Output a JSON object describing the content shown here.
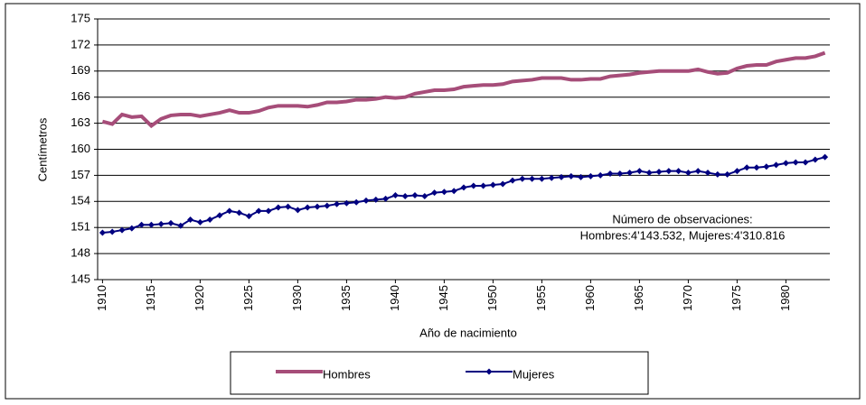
{
  "chart_data": {
    "type": "line",
    "ylabel": "Centímetros",
    "xlabel": "Año de nacimiento",
    "annotations": [
      "Número de observaciones:",
      "Hombres:4'143.532, Mujeres:4'310.816"
    ],
    "x": [
      1910,
      1911,
      1912,
      1913,
      1914,
      1915,
      1916,
      1917,
      1918,
      1919,
      1920,
      1921,
      1922,
      1923,
      1924,
      1925,
      1926,
      1927,
      1928,
      1929,
      1930,
      1931,
      1932,
      1933,
      1934,
      1935,
      1936,
      1937,
      1938,
      1939,
      1940,
      1941,
      1942,
      1943,
      1944,
      1945,
      1946,
      1947,
      1948,
      1949,
      1950,
      1951,
      1952,
      1953,
      1954,
      1955,
      1956,
      1957,
      1958,
      1959,
      1960,
      1961,
      1962,
      1963,
      1964,
      1965,
      1966,
      1967,
      1968,
      1969,
      1970,
      1971,
      1972,
      1973,
      1974,
      1975,
      1976,
      1977,
      1978,
      1979,
      1980,
      1981,
      1982,
      1983,
      1984
    ],
    "series": [
      {
        "name": "Hombres",
        "color": "#a64d79",
        "marker": "none",
        "values": [
          163.2,
          162.9,
          164.0,
          163.7,
          163.8,
          162.7,
          163.5,
          163.9,
          164.0,
          164.0,
          163.8,
          164.0,
          164.2,
          164.5,
          164.2,
          164.2,
          164.4,
          164.8,
          165.0,
          165.0,
          165.0,
          164.9,
          165.1,
          165.4,
          165.4,
          165.5,
          165.7,
          165.7,
          165.8,
          166.0,
          165.9,
          166.0,
          166.4,
          166.6,
          166.8,
          166.8,
          166.9,
          167.2,
          167.3,
          167.4,
          167.4,
          167.5,
          167.8,
          167.9,
          168.0,
          168.2,
          168.2,
          168.2,
          168.0,
          168.0,
          168.1,
          168.1,
          168.4,
          168.5,
          168.6,
          168.8,
          168.9,
          169.0,
          169.0,
          169.0,
          169.0,
          169.2,
          168.9,
          168.7,
          168.8,
          169.3,
          169.6,
          169.7,
          169.7,
          170.1,
          170.3,
          170.5,
          170.5,
          170.7,
          171.1
        ]
      },
      {
        "name": "Mujeres",
        "color": "#000080",
        "marker": "diamond",
        "values": [
          150.4,
          150.5,
          150.7,
          150.9,
          151.3,
          151.3,
          151.4,
          151.5,
          151.2,
          151.9,
          151.6,
          151.9,
          152.4,
          152.9,
          152.7,
          152.3,
          152.9,
          152.9,
          153.3,
          153.4,
          153.0,
          153.3,
          153.4,
          153.5,
          153.7,
          153.8,
          153.9,
          154.1,
          154.2,
          154.3,
          154.7,
          154.6,
          154.7,
          154.6,
          155.0,
          155.1,
          155.2,
          155.6,
          155.8,
          155.8,
          155.9,
          156.0,
          156.4,
          156.6,
          156.6,
          156.6,
          156.7,
          156.8,
          156.9,
          156.8,
          156.9,
          157.0,
          157.2,
          157.2,
          157.3,
          157.5,
          157.3,
          157.4,
          157.5,
          157.5,
          157.3,
          157.5,
          157.3,
          157.1,
          157.1,
          157.5,
          157.9,
          157.9,
          158.0,
          158.2,
          158.4,
          158.5,
          158.5,
          158.8,
          159.1
        ]
      }
    ],
    "xlim": [
      1909.5,
      1984.5
    ],
    "xticks": [
      1910,
      1915,
      1920,
      1925,
      1930,
      1935,
      1940,
      1945,
      1950,
      1955,
      1960,
      1965,
      1970,
      1975,
      1980
    ],
    "ylim": [
      145,
      175
    ],
    "yticks": [
      145,
      148,
      151,
      154,
      157,
      160,
      163,
      166,
      169,
      172,
      175
    ],
    "grid": true,
    "legend": "bottom"
  }
}
